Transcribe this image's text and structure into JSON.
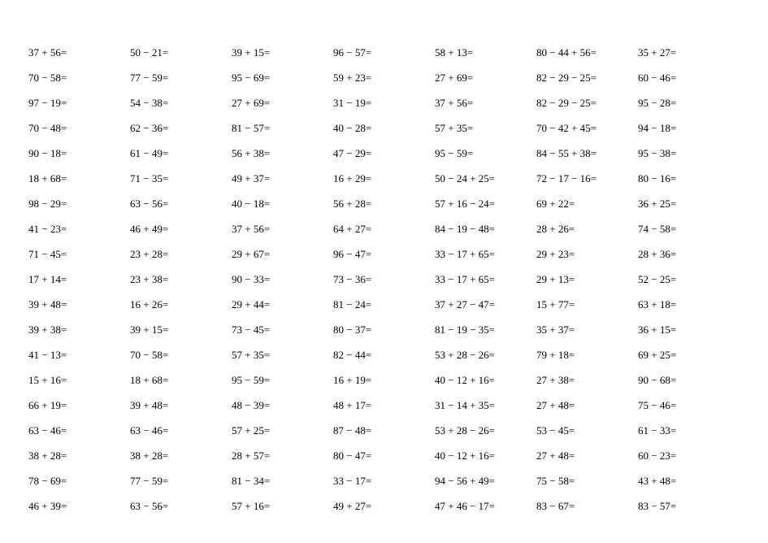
{
  "worksheet": {
    "type": "table",
    "columns": 7,
    "rows": 19,
    "font_family": "Times New Roman",
    "font_size_pt": 10,
    "text_color": "#000000",
    "background_color": "#ffffff",
    "cells": [
      [
        "37 + 56=",
        "50 − 21=",
        "39 + 15=",
        "96 − 57=",
        "58 + 13=",
        "80 − 44 + 56=",
        "35 + 27="
      ],
      [
        "70 − 58=",
        "77 − 59=",
        "95 − 69=",
        "59 + 23=",
        "27 + 69=",
        "82 − 29 − 25=",
        "60 − 46="
      ],
      [
        "97 − 19=",
        "54 − 38=",
        "27 + 69=",
        "31 − 19=",
        "37 + 56=",
        "82 − 29 − 25=",
        "95 − 28="
      ],
      [
        "70 − 48=",
        "62 − 36=",
        "81 − 57=",
        "40 − 28=",
        "57 + 35=",
        "70 − 42 + 45=",
        "94 − 18="
      ],
      [
        "90 − 18=",
        "61 − 49=",
        "56 + 38=",
        "47 − 29=",
        "95 − 59=",
        "84 − 55 + 38=",
        "95 − 38="
      ],
      [
        "18 + 68=",
        "71 − 35=",
        "49 + 37=",
        "16 + 29=",
        "50 − 24 + 25=",
        "72 − 17 − 16=",
        "80 − 16="
      ],
      [
        "98 − 29=",
        "63 − 56=",
        "40 − 18=",
        "56 + 28=",
        "57 + 16 − 24=",
        "69 + 22=",
        "36 + 25="
      ],
      [
        "41 − 23=",
        "46 + 49=",
        "37 + 56=",
        "64 + 27=",
        "84 − 19 − 48=",
        "28 + 26=",
        "74 − 58="
      ],
      [
        "71 − 45=",
        "23 + 28=",
        "29 + 67=",
        "96 − 47=",
        "33 − 17 + 65=",
        "29 + 23=",
        "28 + 36="
      ],
      [
        "17 + 14=",
        "23 + 38=",
        "90 − 33=",
        "73 − 36=",
        "33 − 17 + 65=",
        "29 + 13=",
        "52 − 25="
      ],
      [
        "39 + 48=",
        "16 + 26=",
        "29 + 44=",
        "81 − 24=",
        "37 + 27 − 47=",
        "15 + 77=",
        "63 + 18="
      ],
      [
        "39 + 38=",
        "39 + 15=",
        "73 − 45=",
        "80 − 37=",
        "81 − 19 − 35=",
        "35 + 37=",
        "36 + 15="
      ],
      [
        "41 − 13=",
        "70 − 58=",
        "57 + 35=",
        "82 − 44=",
        "53 + 28 − 26=",
        "79 + 18=",
        "69 + 25="
      ],
      [
        "15 + 16=",
        "18 + 68=",
        "95 − 59=",
        "16 + 19=",
        "40 − 12 + 16=",
        "27 + 38=",
        "90 − 68="
      ],
      [
        "66 + 19=",
        "39 + 48=",
        "48 − 39=",
        "48 + 17=",
        "31 − 14 + 35=",
        "27 + 48=",
        "75 − 46="
      ],
      [
        "63 − 46=",
        "63 − 46=",
        "57 + 25=",
        "87 − 48=",
        "53 + 28 − 26=",
        "53 − 45=",
        "61 − 33="
      ],
      [
        "38 + 28=",
        "38 + 28=",
        "28 + 57=",
        "80 − 47=",
        "40 − 12 + 16=",
        "27 + 48=",
        "60 − 23="
      ],
      [
        "78 − 69=",
        "77 − 59=",
        "81 − 34=",
        "33 − 17=",
        "94 − 56 + 49=",
        "75 − 58=",
        "43 + 48="
      ],
      [
        "46 + 39=",
        "63 − 56=",
        "57 + 16=",
        "49 + 27=",
        "47 + 46 − 17=",
        "83 − 67=",
        "83 − 57="
      ]
    ]
  }
}
